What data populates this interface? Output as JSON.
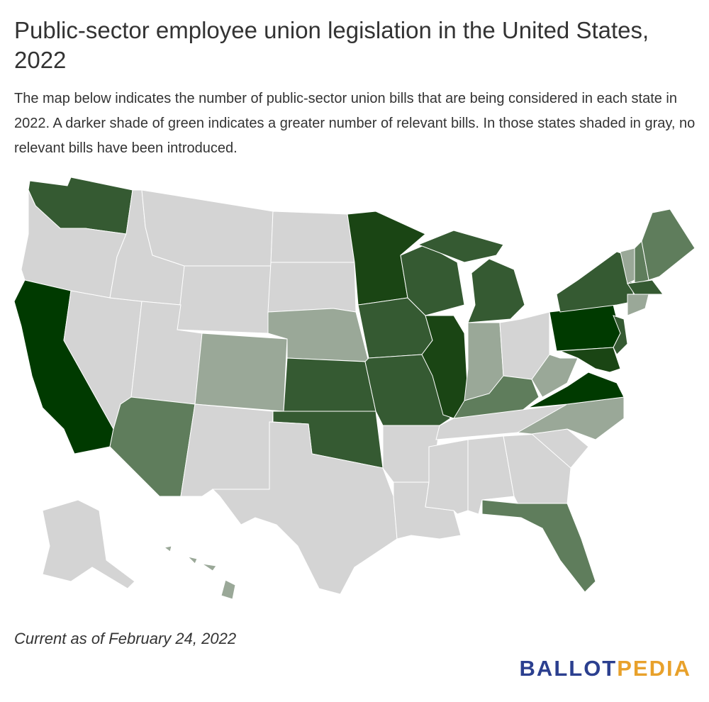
{
  "title": "Public-sector employee union legislation in the United States, 2022",
  "subtitle": "The map below indicates the number of public-sector union bills that are being considered in each state in 2022. A darker shade of green indicates a greater number of relevant bills. In those states shaded in gray, no relevant bills have been introduced.",
  "footnote": "Current as of February 24, 2022",
  "logo": [
    "BALLOT",
    "PEDIA"
  ]
}
